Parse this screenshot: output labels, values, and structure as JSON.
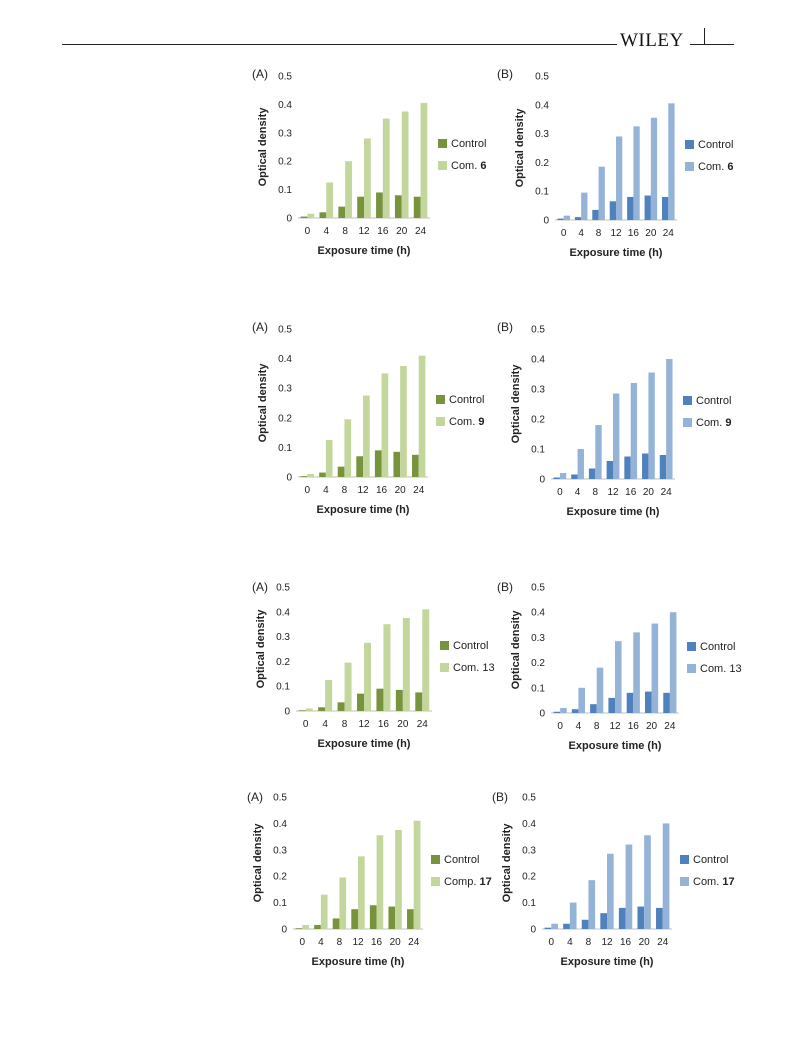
{
  "header": {
    "logo_text": "WILEY"
  },
  "colors": {
    "green_control": "#77933c",
    "green_compound": "#c3d69b",
    "blue_control": "#4f81bd",
    "blue_compound": "#95b3d7"
  },
  "chart_data": [
    {
      "type": "bar",
      "panel_label": "(A)",
      "palette": "green",
      "categories": [
        "0",
        "4",
        "8",
        "12",
        "16",
        "20",
        "24"
      ],
      "xlabel": "Exposure time (h)",
      "ylabel": "Optical density",
      "ylim": [
        0,
        0.5
      ],
      "yticks": [
        "0",
        "0.1",
        "0.2",
        "0.3",
        "0.4",
        "0.5"
      ],
      "grid": false,
      "legend_position": "right",
      "series": [
        {
          "name": "Control",
          "values": [
            0.005,
            0.02,
            0.04,
            0.075,
            0.09,
            0.08,
            0.075
          ]
        },
        {
          "name": "Com. 6",
          "name_prefix": "Com. ",
          "name_bold": "6",
          "values": [
            0.015,
            0.125,
            0.2,
            0.28,
            0.35,
            0.375,
            0.405
          ]
        }
      ]
    },
    {
      "type": "bar",
      "panel_label": "(B)",
      "palette": "blue",
      "categories": [
        "0",
        "4",
        "8",
        "12",
        "16",
        "20",
        "24"
      ],
      "xlabel": "Exposure time (h)",
      "ylabel": "Optical density",
      "ylim": [
        0,
        0.5
      ],
      "yticks": [
        "0",
        "0.1",
        "0.2",
        "0.3",
        "0.4",
        "0.5"
      ],
      "grid": false,
      "legend_position": "right",
      "series": [
        {
          "name": "Control",
          "values": [
            0.005,
            0.01,
            0.035,
            0.065,
            0.08,
            0.085,
            0.08
          ]
        },
        {
          "name": "Com. 6",
          "name_prefix": "Com. ",
          "name_bold": "6",
          "values": [
            0.015,
            0.095,
            0.185,
            0.29,
            0.325,
            0.355,
            0.405
          ]
        }
      ]
    },
    {
      "type": "bar",
      "panel_label": "(A)",
      "palette": "green",
      "categories": [
        "0",
        "4",
        "8",
        "12",
        "16",
        "20",
        "24"
      ],
      "xlabel": "Exposure time (h)",
      "ylabel": "Optical density",
      "ylim": [
        0,
        0.5
      ],
      "yticks": [
        "0",
        "0.1",
        "0.2",
        "0.3",
        "0.4",
        "0.5"
      ],
      "grid": false,
      "legend_position": "right",
      "series": [
        {
          "name": "Control",
          "values": [
            0.003,
            0.015,
            0.035,
            0.07,
            0.09,
            0.085,
            0.075
          ]
        },
        {
          "name": "Com. 9",
          "name_prefix": "Com. ",
          "name_bold": "9",
          "values": [
            0.01,
            0.125,
            0.195,
            0.275,
            0.35,
            0.375,
            0.41
          ]
        }
      ]
    },
    {
      "type": "bar",
      "panel_label": "(B)",
      "palette": "blue",
      "categories": [
        "0",
        "4",
        "8",
        "12",
        "16",
        "20",
        "24"
      ],
      "xlabel": "Exposure time (h)",
      "ylabel": "Optical density",
      "ylim": [
        0,
        0.5
      ],
      "yticks": [
        "0",
        "0.1",
        "0.2",
        "0.3",
        "0.4",
        "0.5"
      ],
      "grid": false,
      "legend_position": "right",
      "series": [
        {
          "name": "Control",
          "values": [
            0.005,
            0.015,
            0.035,
            0.06,
            0.075,
            0.085,
            0.08
          ]
        },
        {
          "name": "Com. 9",
          "name_prefix": "Com. ",
          "name_bold": "9",
          "values": [
            0.02,
            0.1,
            0.18,
            0.285,
            0.32,
            0.355,
            0.4
          ]
        }
      ]
    },
    {
      "type": "bar",
      "panel_label": "(A)",
      "palette": "green",
      "categories": [
        "0",
        "4",
        "8",
        "12",
        "16",
        "20",
        "24"
      ],
      "xlabel": "Exposure time (h)",
      "ylabel": "Optical density",
      "ylim": [
        0,
        0.5
      ],
      "yticks": [
        "0",
        "0.1",
        "0.2",
        "0.3",
        "0.4",
        "0.5"
      ],
      "grid": false,
      "legend_position": "right",
      "series": [
        {
          "name": "Control",
          "values": [
            0.003,
            0.015,
            0.035,
            0.07,
            0.09,
            0.085,
            0.075
          ]
        },
        {
          "name": "Com. 13",
          "name_prefix": "Com. 13",
          "name_bold": "",
          "values": [
            0.01,
            0.125,
            0.195,
            0.275,
            0.35,
            0.375,
            0.41
          ]
        }
      ]
    },
    {
      "type": "bar",
      "panel_label": "(B)",
      "palette": "blue",
      "categories": [
        "0",
        "4",
        "8",
        "12",
        "16",
        "20",
        "24"
      ],
      "xlabel": "Exposure time (h)",
      "ylabel": "Optical density",
      "ylim": [
        0,
        0.5
      ],
      "yticks": [
        "0",
        "0.1",
        "0.2",
        "0.3",
        "0.4",
        "0.5"
      ],
      "grid": false,
      "legend_position": "right",
      "series": [
        {
          "name": "Control",
          "values": [
            0.005,
            0.015,
            0.035,
            0.06,
            0.08,
            0.085,
            0.08
          ]
        },
        {
          "name": "Com. 13",
          "name_prefix": "Com. 13",
          "name_bold": "",
          "values": [
            0.02,
            0.1,
            0.18,
            0.285,
            0.32,
            0.355,
            0.4
          ]
        }
      ]
    },
    {
      "type": "bar",
      "panel_label": "(A)",
      "palette": "green",
      "categories": [
        "0",
        "4",
        "8",
        "12",
        "16",
        "20",
        "24"
      ],
      "xlabel": "Exposure time (h)",
      "ylabel": "Optical density",
      "ylim": [
        0,
        0.5
      ],
      "yticks": [
        "0",
        "0.1",
        "0.2",
        "0.3",
        "0.4",
        "0.5"
      ],
      "grid": false,
      "legend_position": "right",
      "series": [
        {
          "name": "Control",
          "values": [
            0.003,
            0.015,
            0.04,
            0.075,
            0.09,
            0.085,
            0.075
          ]
        },
        {
          "name": "Comp. 17",
          "name_prefix": "Comp. ",
          "name_bold": "17",
          "values": [
            0.015,
            0.13,
            0.195,
            0.275,
            0.355,
            0.375,
            0.41
          ]
        }
      ]
    },
    {
      "type": "bar",
      "panel_label": "(B)",
      "palette": "blue",
      "categories": [
        "0",
        "4",
        "8",
        "12",
        "16",
        "20",
        "24"
      ],
      "xlabel": "Exposure time (h)",
      "ylabel": "Optical density",
      "ylim": [
        0,
        0.5
      ],
      "yticks": [
        "0",
        "0.1",
        "0.2",
        "0.3",
        "0.4",
        "0.5"
      ],
      "grid": false,
      "legend_position": "right",
      "series": [
        {
          "name": "Control",
          "values": [
            0.005,
            0.02,
            0.035,
            0.06,
            0.08,
            0.085,
            0.08
          ]
        },
        {
          "name": "Com. 17",
          "name_prefix": "Com. ",
          "name_bold": "17",
          "values": [
            0.02,
            0.1,
            0.185,
            0.285,
            0.32,
            0.355,
            0.4
          ]
        }
      ]
    }
  ]
}
